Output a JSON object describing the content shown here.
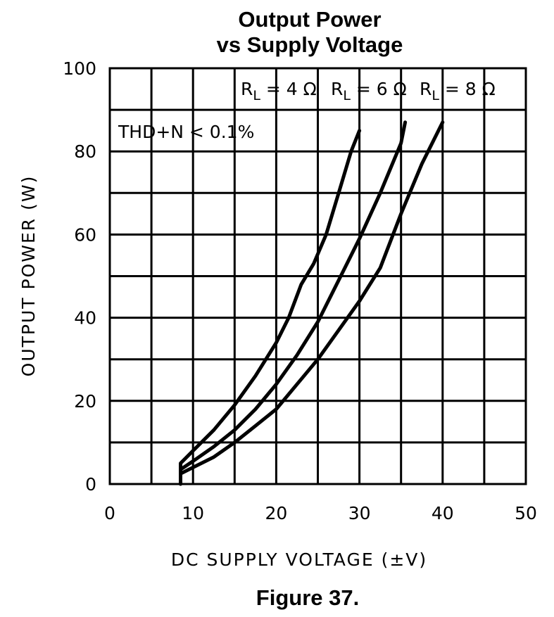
{
  "chart_data": {
    "type": "line",
    "title": [
      "Output Power",
      "vs Supply Voltage"
    ],
    "xlabel": "DC SUPPLY VOLTAGE (±V)",
    "ylabel": "OUTPUT POWER (W)",
    "xlim": [
      0,
      50
    ],
    "ylim": [
      0,
      100
    ],
    "x_ticks": [
      "0",
      "10",
      "20",
      "30",
      "40",
      "50"
    ],
    "y_ticks": [
      "0",
      "20",
      "40",
      "60",
      "80",
      "100"
    ],
    "grid": true,
    "annotation": "THD+N < 0.1%",
    "legend_labels": [
      {
        "prefix": "R",
        "sub": "L",
        "suffix": " = 4 Ω"
      },
      {
        "prefix": "R",
        "sub": "L",
        "suffix": " = 6 Ω"
      },
      {
        "prefix": "R",
        "sub": "L",
        "suffix": " = 8 Ω"
      }
    ],
    "series": [
      {
        "name": "RL = 4 Ω",
        "x": [
          8.5,
          8.5,
          10,
          12.5,
          15,
          17.5,
          20,
          21.5,
          23,
          24.5,
          26,
          27.5,
          29,
          30
        ],
        "y": [
          0,
          5,
          8,
          13,
          19,
          26,
          34,
          40,
          48,
          53,
          60,
          70,
          80,
          85
        ]
      },
      {
        "name": "RL = 6 Ω",
        "x": [
          8.5,
          8.5,
          10,
          12.5,
          15,
          17.5,
          20,
          22.5,
          25,
          27.5,
          30,
          32.5,
          35,
          35.5
        ],
        "y": [
          0,
          3.5,
          5.5,
          9,
          13,
          18,
          24,
          31,
          39,
          49,
          59,
          70,
          82,
          87
        ]
      },
      {
        "name": "RL = 8 Ω",
        "x": [
          8.5,
          8.5,
          10,
          12.5,
          15,
          17.5,
          20,
          22.5,
          25,
          27.5,
          30,
          32.5,
          35,
          37.5,
          40
        ],
        "y": [
          0,
          2.5,
          4,
          6.5,
          10,
          14,
          18,
          24,
          30,
          37,
          44,
          52,
          65,
          77,
          87
        ]
      }
    ],
    "caption": "Figure 37."
  }
}
